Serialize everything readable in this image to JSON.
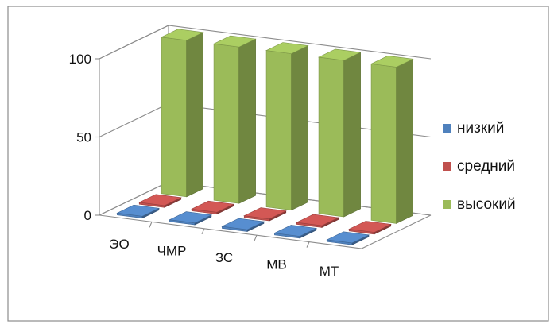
{
  "chart_data": {
    "type": "bar",
    "categories": [
      "ЭО",
      "ЧМР",
      "ЗС",
      "МВ",
      "МТ"
    ],
    "series": [
      {
        "name": "низкий",
        "color": "#4f81bd",
        "values": [
          0,
          0,
          0,
          0,
          0
        ]
      },
      {
        "name": "средний",
        "color": "#c0504d",
        "values": [
          0,
          0,
          0,
          0,
          0
        ]
      },
      {
        "name": "высокий",
        "color": "#9bbb59",
        "values": [
          100,
          100,
          100,
          100,
          100
        ]
      }
    ],
    "y_ticks": [
      "0",
      "50",
      "100"
    ],
    "ylim": [
      0,
      100
    ],
    "grid": true,
    "legend_position": "right",
    "three_d": true
  }
}
